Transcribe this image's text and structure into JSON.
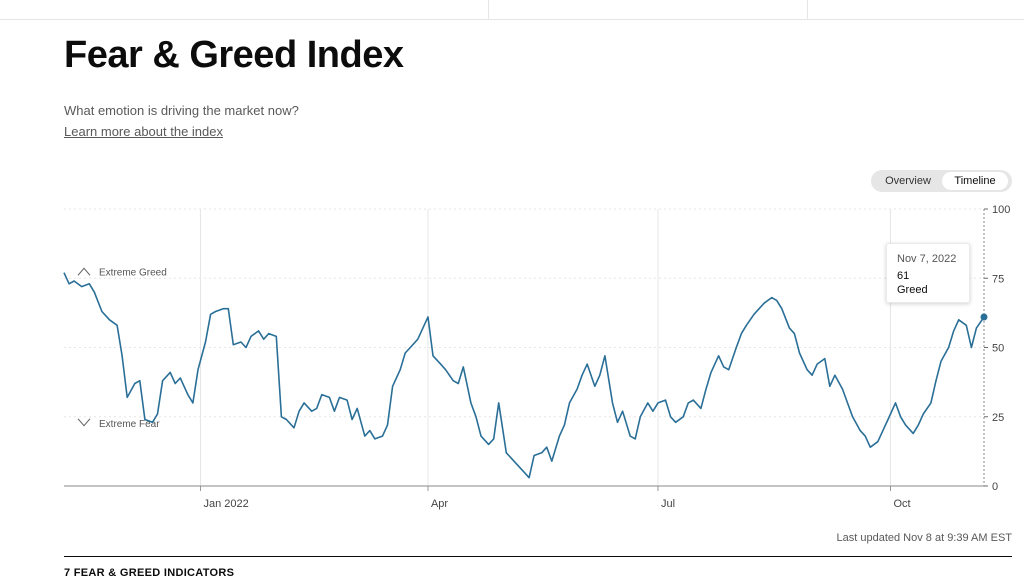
{
  "page": {
    "title": "Fear & Greed Index",
    "subtitle": "What emotion is driving the market now?",
    "learn_link": "Learn more about the index",
    "last_updated": "Last updated Nov 8 at 9:39 AM EST",
    "section_heading": "7 FEAR & GREED INDICATORS"
  },
  "toggle": {
    "overview_label": "Overview",
    "timeline_label": "Timeline",
    "selected": "Timeline"
  },
  "tooltip": {
    "date": "Nov 7, 2022",
    "value": "61",
    "label": "Greed"
  },
  "colors": {
    "line": "#2a6f97",
    "grid": "#e6e6e6",
    "axis": "#6b6b6b"
  },
  "chart_data": {
    "type": "line",
    "x_range": [
      "2021-11-08",
      "2022-11-07"
    ],
    "ylim": [
      0,
      100
    ],
    "yticks": [
      0,
      25,
      50,
      75,
      100
    ],
    "xticks": [
      {
        "label": "Jan 2022",
        "date": "2022-01-01"
      },
      {
        "label": "Apr",
        "date": "2022-04-01"
      },
      {
        "label": "Jul",
        "date": "2022-07-01"
      },
      {
        "label": "Oct",
        "date": "2022-10-01"
      }
    ],
    "bands": [
      {
        "label": "Extreme Greed",
        "value": 75,
        "icon": "chevron-up-icon"
      },
      {
        "label": "Extreme Fear",
        "value": 25,
        "icon": "chevron-down-icon"
      }
    ],
    "highlight": {
      "date": "2022-11-07",
      "value": 61
    },
    "series": [
      {
        "points": [
          [
            "2021-11-08",
            77
          ],
          [
            "2021-11-10",
            73
          ],
          [
            "2021-11-12",
            74
          ],
          [
            "2021-11-15",
            72
          ],
          [
            "2021-11-18",
            73
          ],
          [
            "2021-11-20",
            70
          ],
          [
            "2021-11-23",
            63
          ],
          [
            "2021-11-26",
            60
          ],
          [
            "2021-11-29",
            58
          ],
          [
            "2021-12-01",
            47
          ],
          [
            "2021-12-03",
            32
          ],
          [
            "2021-12-06",
            37
          ],
          [
            "2021-12-08",
            38
          ],
          [
            "2021-12-10",
            24
          ],
          [
            "2021-12-13",
            23
          ],
          [
            "2021-12-15",
            26
          ],
          [
            "2021-12-17",
            38
          ],
          [
            "2021-12-20",
            41
          ],
          [
            "2021-12-22",
            37
          ],
          [
            "2021-12-24",
            39
          ],
          [
            "2021-12-27",
            33
          ],
          [
            "2021-12-29",
            30
          ],
          [
            "2021-12-31",
            42
          ],
          [
            "2022-01-03",
            52
          ],
          [
            "2022-01-05",
            62
          ],
          [
            "2022-01-07",
            63
          ],
          [
            "2022-01-10",
            64
          ],
          [
            "2022-01-12",
            64
          ],
          [
            "2022-01-14",
            51
          ],
          [
            "2022-01-17",
            52
          ],
          [
            "2022-01-19",
            50
          ],
          [
            "2022-01-21",
            54
          ],
          [
            "2022-01-24",
            56
          ],
          [
            "2022-01-26",
            53
          ],
          [
            "2022-01-28",
            55
          ],
          [
            "2022-01-31",
            54
          ],
          [
            "2022-02-02",
            25
          ],
          [
            "2022-02-04",
            24
          ],
          [
            "2022-02-07",
            21
          ],
          [
            "2022-02-09",
            27
          ],
          [
            "2022-02-11",
            30
          ],
          [
            "2022-02-14",
            27
          ],
          [
            "2022-02-16",
            28
          ],
          [
            "2022-02-18",
            33
          ],
          [
            "2022-02-21",
            32
          ],
          [
            "2022-02-23",
            27
          ],
          [
            "2022-02-25",
            32
          ],
          [
            "2022-02-28",
            31
          ],
          [
            "2022-03-02",
            24
          ],
          [
            "2022-03-04",
            28
          ],
          [
            "2022-03-07",
            18
          ],
          [
            "2022-03-09",
            20
          ],
          [
            "2022-03-11",
            17
          ],
          [
            "2022-03-14",
            18
          ],
          [
            "2022-03-16",
            22
          ],
          [
            "2022-03-18",
            36
          ],
          [
            "2022-03-21",
            42
          ],
          [
            "2022-03-23",
            48
          ],
          [
            "2022-03-25",
            50
          ],
          [
            "2022-03-28",
            53
          ],
          [
            "2022-03-31",
            59
          ],
          [
            "2022-04-01",
            61
          ],
          [
            "2022-04-03",
            47
          ],
          [
            "2022-04-06",
            44
          ],
          [
            "2022-04-08",
            42
          ],
          [
            "2022-04-11",
            38
          ],
          [
            "2022-04-13",
            37
          ],
          [
            "2022-04-15",
            43
          ],
          [
            "2022-04-18",
            30
          ],
          [
            "2022-04-20",
            25
          ],
          [
            "2022-04-22",
            18
          ],
          [
            "2022-04-25",
            15
          ],
          [
            "2022-04-27",
            17
          ],
          [
            "2022-04-29",
            30
          ],
          [
            "2022-05-02",
            12
          ],
          [
            "2022-05-04",
            10
          ],
          [
            "2022-05-06",
            8
          ],
          [
            "2022-05-09",
            5
          ],
          [
            "2022-05-11",
            3
          ],
          [
            "2022-05-13",
            11
          ],
          [
            "2022-05-16",
            12
          ],
          [
            "2022-05-18",
            14
          ],
          [
            "2022-05-20",
            9
          ],
          [
            "2022-05-23",
            18
          ],
          [
            "2022-05-25",
            22
          ],
          [
            "2022-05-27",
            30
          ],
          [
            "2022-05-30",
            35
          ],
          [
            "2022-06-01",
            40
          ],
          [
            "2022-06-03",
            44
          ],
          [
            "2022-06-06",
            36
          ],
          [
            "2022-06-08",
            40
          ],
          [
            "2022-06-10",
            47
          ],
          [
            "2022-06-13",
            30
          ],
          [
            "2022-06-15",
            23
          ],
          [
            "2022-06-17",
            27
          ],
          [
            "2022-06-20",
            18
          ],
          [
            "2022-06-22",
            17
          ],
          [
            "2022-06-24",
            25
          ],
          [
            "2022-06-27",
            30
          ],
          [
            "2022-06-29",
            27
          ],
          [
            "2022-07-01",
            30
          ],
          [
            "2022-07-04",
            31
          ],
          [
            "2022-07-06",
            25
          ],
          [
            "2022-07-08",
            23
          ],
          [
            "2022-07-11",
            25
          ],
          [
            "2022-07-13",
            30
          ],
          [
            "2022-07-15",
            31
          ],
          [
            "2022-07-18",
            28
          ],
          [
            "2022-07-20",
            35
          ],
          [
            "2022-07-22",
            41
          ],
          [
            "2022-07-25",
            47
          ],
          [
            "2022-07-27",
            43
          ],
          [
            "2022-07-29",
            42
          ],
          [
            "2022-08-01",
            50
          ],
          [
            "2022-08-03",
            55
          ],
          [
            "2022-08-05",
            58
          ],
          [
            "2022-08-08",
            62
          ],
          [
            "2022-08-10",
            64
          ],
          [
            "2022-08-12",
            66
          ],
          [
            "2022-08-15",
            68
          ],
          [
            "2022-08-17",
            67
          ],
          [
            "2022-08-19",
            64
          ],
          [
            "2022-08-22",
            57
          ],
          [
            "2022-08-24",
            55
          ],
          [
            "2022-08-26",
            48
          ],
          [
            "2022-08-29",
            42
          ],
          [
            "2022-08-31",
            40
          ],
          [
            "2022-09-02",
            44
          ],
          [
            "2022-09-05",
            46
          ],
          [
            "2022-09-07",
            36
          ],
          [
            "2022-09-09",
            40
          ],
          [
            "2022-09-12",
            35
          ],
          [
            "2022-09-14",
            30
          ],
          [
            "2022-09-16",
            25
          ],
          [
            "2022-09-19",
            20
          ],
          [
            "2022-09-21",
            18
          ],
          [
            "2022-09-23",
            14
          ],
          [
            "2022-09-26",
            16
          ],
          [
            "2022-09-28",
            20
          ],
          [
            "2022-09-30",
            24
          ],
          [
            "2022-10-03",
            30
          ],
          [
            "2022-10-05",
            25
          ],
          [
            "2022-10-07",
            22
          ],
          [
            "2022-10-10",
            19
          ],
          [
            "2022-10-12",
            22
          ],
          [
            "2022-10-14",
            26
          ],
          [
            "2022-10-17",
            30
          ],
          [
            "2022-10-19",
            38
          ],
          [
            "2022-10-21",
            45
          ],
          [
            "2022-10-24",
            50
          ],
          [
            "2022-10-26",
            56
          ],
          [
            "2022-10-28",
            60
          ],
          [
            "2022-10-31",
            58
          ],
          [
            "2022-11-02",
            50
          ],
          [
            "2022-11-04",
            57
          ],
          [
            "2022-11-07",
            61
          ]
        ]
      }
    ]
  }
}
